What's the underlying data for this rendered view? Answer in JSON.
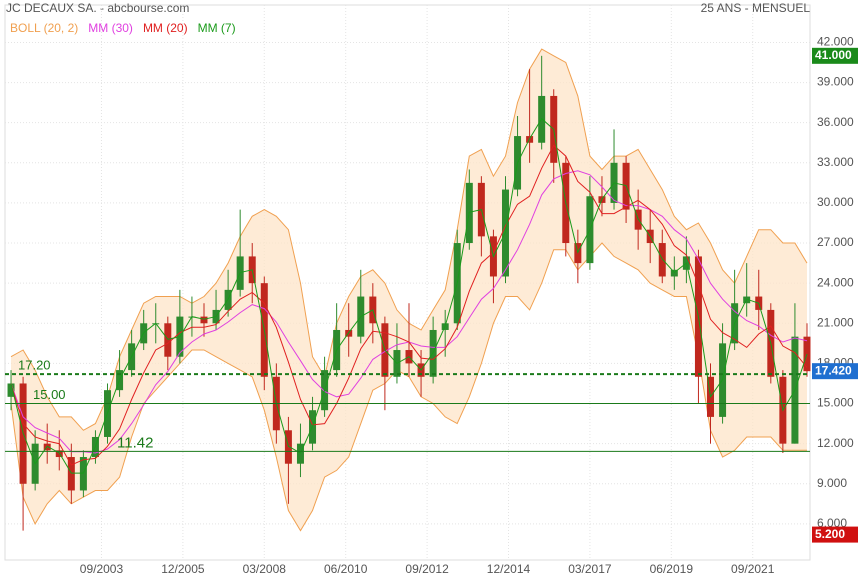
{
  "chart_data": {
    "type": "candlestick",
    "title": "JC DECAUX SA. - abcbourse.com",
    "subtitle": "25 ANS - MENSUEL",
    "xlim": [
      "01/2001",
      "04/2023"
    ],
    "xticks": [
      "09/2003",
      "12/2005",
      "03/2008",
      "06/2010",
      "09/2012",
      "12/2014",
      "03/2017",
      "06/2019",
      "09/2021"
    ],
    "ylim": [
      3.3,
      44.8
    ],
    "yticks": [
      {
        "value": 6,
        "label": "6.000"
      },
      {
        "value": 9,
        "label": "9.000"
      },
      {
        "value": 12,
        "label": "12.000"
      },
      {
        "value": 15,
        "label": "15.000"
      },
      {
        "value": 18,
        "label": "18.000"
      },
      {
        "value": 21,
        "label": "21.000"
      },
      {
        "value": 24,
        "label": "24.000"
      },
      {
        "value": 27,
        "label": "27.000"
      },
      {
        "value": 30,
        "label": "30.000"
      },
      {
        "value": 33,
        "label": "33.000"
      },
      {
        "value": 36,
        "label": "36.000"
      },
      {
        "value": 39,
        "label": "39.000"
      },
      {
        "value": 42,
        "label": "42.000"
      }
    ],
    "grid": true,
    "candles": {
      "up_color": "#2e8b2e",
      "down_color": "#c0281e",
      "x": [
        "03/2001",
        "07/2001",
        "11/2001",
        "03/2002",
        "07/2002",
        "11/2002",
        "03/2003",
        "07/2003",
        "11/2003",
        "03/2004",
        "07/2004",
        "11/2004",
        "03/2005",
        "07/2005",
        "11/2005",
        "03/2006",
        "07/2006",
        "11/2006",
        "03/2007",
        "07/2007",
        "11/2007",
        "03/2008",
        "07/2008",
        "11/2008",
        "03/2009",
        "07/2009",
        "11/2009",
        "03/2010",
        "07/2010",
        "11/2010",
        "03/2011",
        "07/2011",
        "11/2011",
        "03/2012",
        "07/2012",
        "11/2012",
        "03/2013",
        "07/2013",
        "11/2013",
        "03/2014",
        "07/2014",
        "11/2014",
        "03/2015",
        "07/2015",
        "11/2015",
        "03/2016",
        "07/2016",
        "11/2016",
        "03/2017",
        "07/2017",
        "11/2017",
        "03/2018",
        "07/2018",
        "11/2018",
        "03/2019",
        "07/2019",
        "11/2019",
        "03/2020",
        "07/2020",
        "11/2020",
        "03/2021",
        "07/2021",
        "11/2021",
        "03/2022",
        "07/2022",
        "11/2022",
        "03/2023"
      ],
      "ohlc": [
        [
          15.5,
          17.5,
          14.5,
          16.5
        ],
        [
          16.5,
          17,
          5.5,
          9
        ],
        [
          9,
          13,
          8.5,
          12
        ],
        [
          12,
          13.5,
          10.5,
          11.5
        ],
        [
          11.5,
          13,
          10,
          11
        ],
        [
          11,
          12,
          7.5,
          8.5
        ],
        [
          8.5,
          11.5,
          8,
          11
        ],
        [
          11,
          13,
          10.5,
          12.5
        ],
        [
          12.5,
          16.5,
          12,
          16
        ],
        [
          16,
          19,
          15.5,
          17.5
        ],
        [
          17.5,
          20.5,
          17,
          19.5
        ],
        [
          19.5,
          22,
          19,
          21
        ],
        [
          21,
          22.5,
          19.5,
          21
        ],
        [
          21,
          21.5,
          17.5,
          18.5
        ],
        [
          18.5,
          23.5,
          18,
          21.5
        ],
        [
          21.5,
          23,
          20,
          21.5
        ],
        [
          21.5,
          22.5,
          20,
          21
        ],
        [
          21,
          23.5,
          20.5,
          22
        ],
        [
          22,
          25,
          21.5,
          23.5
        ],
        [
          23.5,
          29.5,
          23,
          26
        ],
        [
          26,
          27,
          22.5,
          24
        ],
        [
          24,
          24.5,
          16,
          17
        ],
        [
          17,
          18,
          12,
          13
        ],
        [
          13,
          14,
          7.5,
          10.5
        ],
        [
          10.5,
          13.5,
          9.5,
          12
        ],
        [
          12,
          15.5,
          11.5,
          14.5
        ],
        [
          14.5,
          18.5,
          14,
          17.5
        ],
        [
          17.5,
          22.5,
          17,
          20.5
        ],
        [
          20.5,
          22.5,
          18.5,
          20
        ],
        [
          20,
          25,
          19.5,
          23
        ],
        [
          23,
          24,
          19.5,
          21
        ],
        [
          21,
          21.5,
          14.5,
          17
        ],
        [
          17,
          21,
          16.5,
          19
        ],
        [
          19,
          22.5,
          17,
          18
        ],
        [
          18,
          19,
          15.5,
          17
        ],
        [
          17,
          21.5,
          16.5,
          20.5
        ],
        [
          20.5,
          22,
          18.5,
          21
        ],
        [
          21,
          28,
          20.5,
          27
        ],
        [
          27,
          32.5,
          26.5,
          31.5
        ],
        [
          31.5,
          32,
          26,
          27.5
        ],
        [
          27.5,
          28,
          22.5,
          24.5
        ],
        [
          24.5,
          32,
          24,
          31
        ],
        [
          31,
          36.5,
          30.5,
          35
        ],
        [
          35,
          40,
          33,
          34.5
        ],
        [
          34.5,
          41,
          34,
          38
        ],
        [
          38,
          38.5,
          31.5,
          33
        ],
        [
          33,
          33.5,
          26,
          27
        ],
        [
          27,
          28,
          24,
          25.5
        ],
        [
          25.5,
          32,
          25,
          30.5
        ],
        [
          30.5,
          32,
          29,
          30
        ],
        [
          30,
          35.5,
          29.5,
          33
        ],
        [
          33,
          33.5,
          28.5,
          29.5
        ],
        [
          29.5,
          31,
          26.5,
          28
        ],
        [
          28,
          29.5,
          25.5,
          27
        ],
        [
          27,
          28,
          24,
          24.5
        ],
        [
          24.5,
          26,
          23.5,
          25
        ],
        [
          25,
          27.5,
          24,
          26
        ],
        [
          26,
          26.5,
          15,
          17
        ],
        [
          17,
          18,
          12,
          14
        ],
        [
          14,
          21,
          13.5,
          19.5
        ],
        [
          19.5,
          25,
          19,
          22.5
        ],
        [
          22.5,
          25.5,
          21.5,
          23
        ],
        [
          23,
          25,
          20.5,
          22
        ],
        [
          22,
          22.5,
          16.5,
          17
        ],
        [
          17,
          17.5,
          11.3,
          12
        ],
        [
          12,
          22.5,
          12,
          20
        ],
        [
          20,
          21,
          17,
          17.42
        ]
      ]
    },
    "bollinger": {
      "name": "BOLL (20, 2)",
      "color": "#f0a050",
      "fill": "#fde4c8",
      "upper": [
        18.5,
        19,
        17.5,
        15.5,
        14,
        14,
        13,
        13.5,
        15.5,
        18.5,
        20.5,
        22.5,
        23,
        23,
        23,
        22.5,
        23,
        24,
        25.5,
        27.5,
        29,
        29.5,
        29,
        28,
        24,
        18.5,
        17,
        21,
        23,
        24.5,
        25,
        24,
        22,
        21,
        20.5,
        22,
        23.5,
        28,
        33.5,
        34,
        32,
        33.5,
        37.5,
        40,
        41.5,
        41,
        40.5,
        38,
        33.5,
        32.5,
        33.5,
        33.5,
        34,
        32.5,
        31,
        29,
        28,
        28.5,
        27,
        25,
        24,
        26,
        28,
        28,
        27,
        27,
        25.5
      ],
      "lower": [
        15,
        8,
        6,
        7.5,
        8.5,
        7.5,
        8,
        8.5,
        8.5,
        9.5,
        12.5,
        15,
        16,
        17,
        18,
        19,
        19,
        18.5,
        18,
        17.5,
        17,
        14.5,
        11,
        7,
        5.5,
        7,
        9.5,
        10,
        11,
        13.5,
        16,
        16.5,
        17.5,
        17,
        15.5,
        15,
        14,
        13.5,
        15.5,
        18,
        21,
        23,
        23,
        22,
        24,
        26.5,
        26.5,
        25,
        26,
        27,
        26,
        25.5,
        25,
        24,
        23.5,
        23,
        23,
        18.5,
        13,
        11,
        11.5,
        12.5,
        12.5,
        12.5,
        11.5,
        11.5,
        11.5
      ]
    },
    "series": [
      {
        "name": "MM (30)",
        "color": "#e040e0",
        "values": [
          16.5,
          14,
          13.2,
          12.8,
          12.4,
          11.4,
          11.4,
          11.3,
          11.6,
          12.3,
          13.5,
          14.9,
          16.4,
          17.4,
          18.8,
          19.6,
          20.2,
          20.5,
          21.1,
          21.8,
          22.4,
          22.1,
          21.1,
          19.6,
          18.2,
          16.8,
          15.9,
          15.5,
          15.7,
          16.9,
          18.3,
          18.9,
          19.4,
          19.6,
          19.3,
          19.2,
          19.2,
          20,
          21.4,
          22.8,
          23.6,
          25,
          26.5,
          28.4,
          30.6,
          31.8,
          32.2,
          32.4,
          32.1,
          31.2,
          30.2,
          29.8,
          29.8,
          29.5,
          29,
          28,
          27.3,
          25.8,
          24,
          22.8,
          21.9,
          21.2,
          20.8,
          20.1,
          19.6,
          19.9,
          19.7
        ]
      },
      {
        "name": "MM (20)",
        "color": "#e02020",
        "values": [
          16.5,
          13.5,
          12.5,
          12.2,
          12,
          10.4,
          10.8,
          10.9,
          11.8,
          13.1,
          15.3,
          17.3,
          19,
          19.5,
          20.3,
          20.7,
          20.7,
          20.9,
          21.9,
          22.8,
          23.3,
          22.5,
          20.7,
          18.1,
          15.3,
          13.4,
          13.5,
          15,
          16.9,
          19.1,
          20.4,
          20.3,
          20,
          19.6,
          18.4,
          18.3,
          19.1,
          20.7,
          23.4,
          25.5,
          26.3,
          28.3,
          29.9,
          30.5,
          32.6,
          34.3,
          33.5,
          31.6,
          30.8,
          29.2,
          29.2,
          29.7,
          30.2,
          29.5,
          28.4,
          26.8,
          26.1,
          23.9,
          21.3,
          20.3,
          19.8,
          19.2,
          20.2,
          20.8,
          19.3,
          18.8,
          17.7
        ]
      },
      {
        "name": "MM (7)",
        "color": "#1a9a1a",
        "values": [
          16.5,
          12.8,
          10.5,
          11.8,
          11.3,
          9.8,
          9.8,
          11.8,
          14.3,
          16.8,
          18.5,
          20.3,
          21,
          19.8,
          20,
          21.5,
          21.3,
          21.5,
          22.8,
          24.8,
          25,
          20.5,
          15,
          11.8,
          11.3,
          13.3,
          16,
          19,
          20.3,
          21.5,
          22,
          19,
          18,
          18.5,
          17.5,
          18.8,
          20.8,
          24,
          29.3,
          29.5,
          26,
          27.8,
          33,
          34.8,
          36.3,
          35.5,
          30,
          26.3,
          28,
          30.3,
          31.5,
          31.3,
          28.8,
          27.5,
          25.8,
          24.8,
          25.5,
          21.5,
          15.5,
          16.8,
          21,
          22.8,
          22.5,
          19.5,
          14.5,
          16,
          18.7
        ]
      }
    ],
    "levels": [
      {
        "value": 17.2,
        "label": "17.20",
        "style": "dashed",
        "color": "#1a7a1a"
      },
      {
        "value": 15,
        "label": "15.00",
        "style": "solid",
        "color": "#1a7a1a"
      },
      {
        "value": 11.42,
        "label": "11.42",
        "style": "solid",
        "color": "#1a7a1a"
      }
    ],
    "price_markers": [
      {
        "value": 41,
        "label": "41.000",
        "color": "#1a8a1a"
      },
      {
        "value": 17.42,
        "label": "17.420",
        "color": "#1f6fd0"
      },
      {
        "value": 5.2,
        "label": "5.200",
        "color": "#d01010"
      }
    ]
  }
}
